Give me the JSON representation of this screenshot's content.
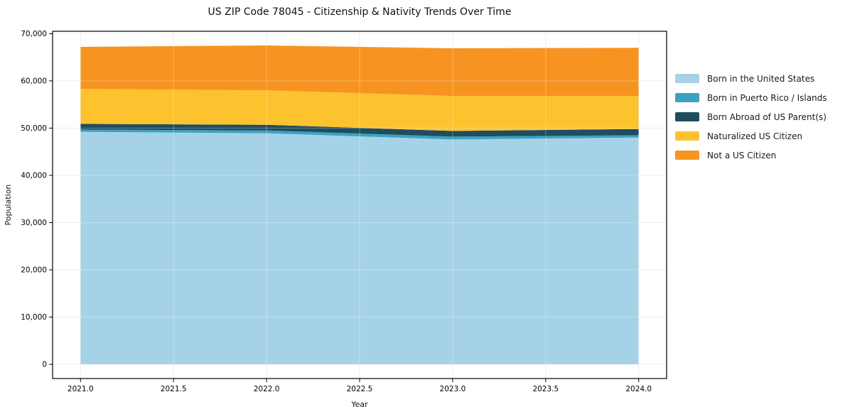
{
  "chart_data": {
    "type": "area",
    "stacked": true,
    "title": "US ZIP Code 78045 - Citizenship & Nativity Trends Over Time",
    "xlabel": "Year",
    "ylabel": "Population",
    "x": [
      2021,
      2022,
      2023,
      2024
    ],
    "series": [
      {
        "name": "Born in the United States",
        "color": "#a6d2e7",
        "values": [
          49200,
          48900,
          47600,
          48000
        ]
      },
      {
        "name": "Born in Puerto Rico / Islands",
        "color": "#3ba3c2",
        "values": [
          500,
          600,
          600,
          500
        ]
      },
      {
        "name": "Born Abroad of US Parent(s)",
        "color": "#1f4d5e",
        "values": [
          1200,
          1200,
          1200,
          1300
        ]
      },
      {
        "name": "Naturalized US Citizen",
        "color": "#fcc32e",
        "values": [
          7400,
          7300,
          7400,
          7000
        ]
      },
      {
        "name": "Not a US Citizen",
        "color": "#f79421",
        "values": [
          8900,
          9500,
          10100,
          10200
        ]
      }
    ],
    "xlim": [
      2020.85,
      2024.15
    ],
    "ylim": [
      -3000,
      70500
    ],
    "x_tick_values": [
      2021.0,
      2021.5,
      2022.0,
      2022.5,
      2023.0,
      2023.5,
      2024.0
    ],
    "x_ticks": [
      "2021.0",
      "2021.5",
      "2022.0",
      "2022.5",
      "2023.0",
      "2023.5",
      "2024.0"
    ],
    "y_tick_values": [
      0,
      10000,
      20000,
      30000,
      40000,
      50000,
      60000,
      70000
    ],
    "y_ticks": [
      "0",
      "10,000",
      "20,000",
      "30,000",
      "40,000",
      "50,000",
      "60,000",
      "70,000"
    ],
    "grid": true,
    "legend_position": "right-outside",
    "colors": {
      "grid": "#e7e7e7",
      "spine": "#000000",
      "tick_label": "#000000",
      "background": "#ffffff"
    }
  }
}
